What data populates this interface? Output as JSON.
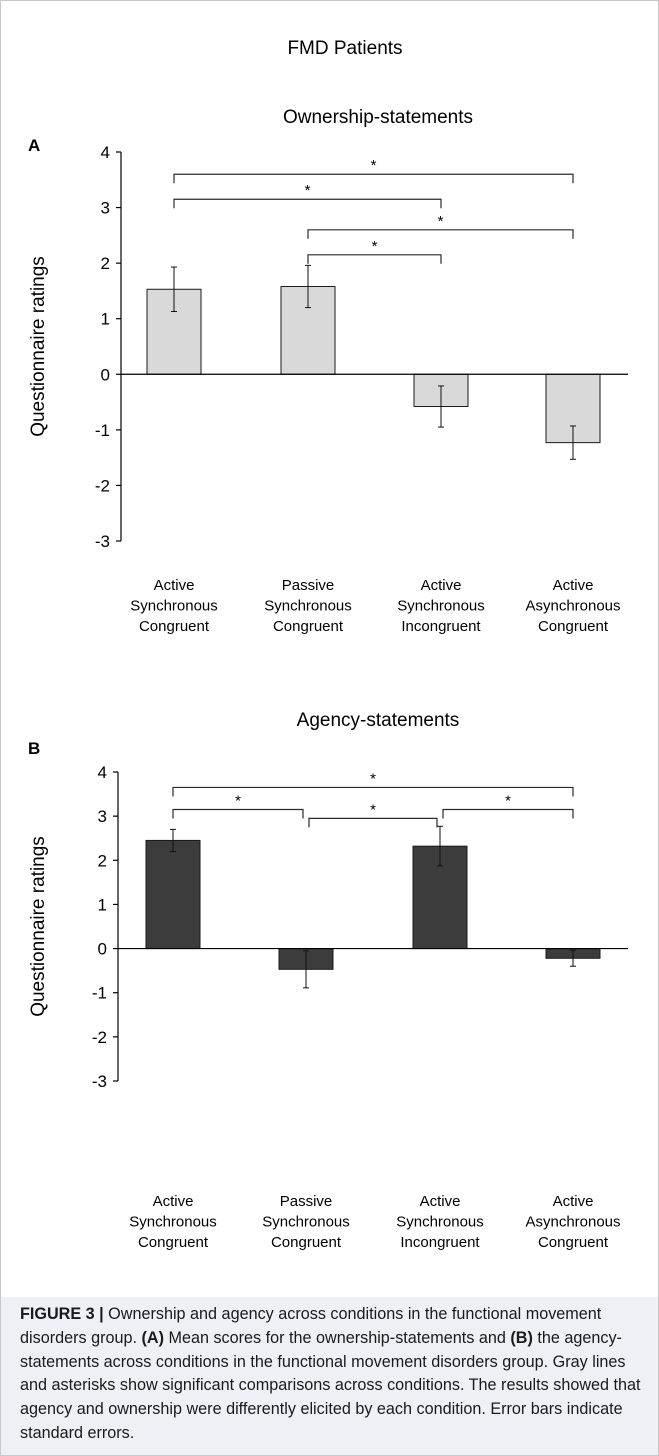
{
  "figure_title": "FMD Patients",
  "caption": {
    "label": "FIGURE 3 |",
    "text_1": " Ownership and agency across conditions in the functional movement disorders group. ",
    "panel_a": "(A)",
    "text_2": " Mean scores for the ownership-statements and ",
    "panel_b": "(B)",
    "text_3": " the agency-statements across conditions in the functional movement disorders group. Gray lines and asterisks show significant comparisons across conditions. The results showed that agency and ownership were differently elicited by each condition. Error bars indicate standard errors."
  },
  "colors": {
    "panel_a_bar": "#d9d9d9",
    "panel_b_bar": "#3c3c3c",
    "bracket": "#2a2a2a",
    "axis": "#000000"
  },
  "chart_data": [
    {
      "panel": "A",
      "type": "bar",
      "title": "Ownership-statements",
      "ylabel": "Questionnaire ratings",
      "xlabel": "",
      "ylim": [
        -3,
        4
      ],
      "yticks": [
        4,
        3,
        2,
        1,
        0,
        -1,
        -2,
        -3
      ],
      "categories": [
        [
          "Active",
          "Synchronous",
          "Congruent"
        ],
        [
          "Passive",
          "Synchronous",
          "Congruent"
        ],
        [
          "Active",
          "Synchronous",
          "Incongruent"
        ],
        [
          "Active",
          "Asynchronous",
          "Congruent"
        ]
      ],
      "values": [
        1.53,
        1.58,
        -0.58,
        -1.23
      ],
      "errors": [
        0.4,
        0.38,
        0.37,
        0.3
      ],
      "significance": [
        {
          "from": 0,
          "to": 3,
          "y": 3.6,
          "label": "*"
        },
        {
          "from": 0,
          "to": 2,
          "y": 3.15,
          "label": "*"
        },
        {
          "from": 1,
          "to": 3,
          "y": 2.6,
          "label": "*"
        },
        {
          "from": 1,
          "to": 2,
          "y": 2.15,
          "label": "*"
        }
      ]
    },
    {
      "panel": "B",
      "type": "bar",
      "title": "Agency-statements",
      "ylabel": "Questionnaire ratings",
      "xlabel": "",
      "ylim": [
        -3,
        4
      ],
      "yticks": [
        4,
        3,
        2,
        1,
        0,
        -1,
        -2,
        -3
      ],
      "categories": [
        [
          "Active",
          "Synchronous",
          "Congruent"
        ],
        [
          "Passive",
          "Synchronous",
          "Congruent"
        ],
        [
          "Active",
          "Synchronous",
          "Incongruent"
        ],
        [
          "Active",
          "Asynchronous",
          "Congruent"
        ]
      ],
      "values": [
        2.45,
        -0.47,
        2.32,
        -0.22
      ],
      "errors": [
        0.25,
        0.42,
        0.45,
        0.18
      ],
      "significance": [
        {
          "from": 0,
          "to": 3,
          "y": 3.65,
          "label": "*"
        },
        {
          "from": 0,
          "to": 1,
          "y": 3.15,
          "label": "*"
        },
        {
          "from": 1,
          "to": 2,
          "y": 2.95,
          "label": "*"
        },
        {
          "from": 2,
          "to": 3,
          "y": 3.15,
          "label": "*"
        }
      ]
    }
  ]
}
